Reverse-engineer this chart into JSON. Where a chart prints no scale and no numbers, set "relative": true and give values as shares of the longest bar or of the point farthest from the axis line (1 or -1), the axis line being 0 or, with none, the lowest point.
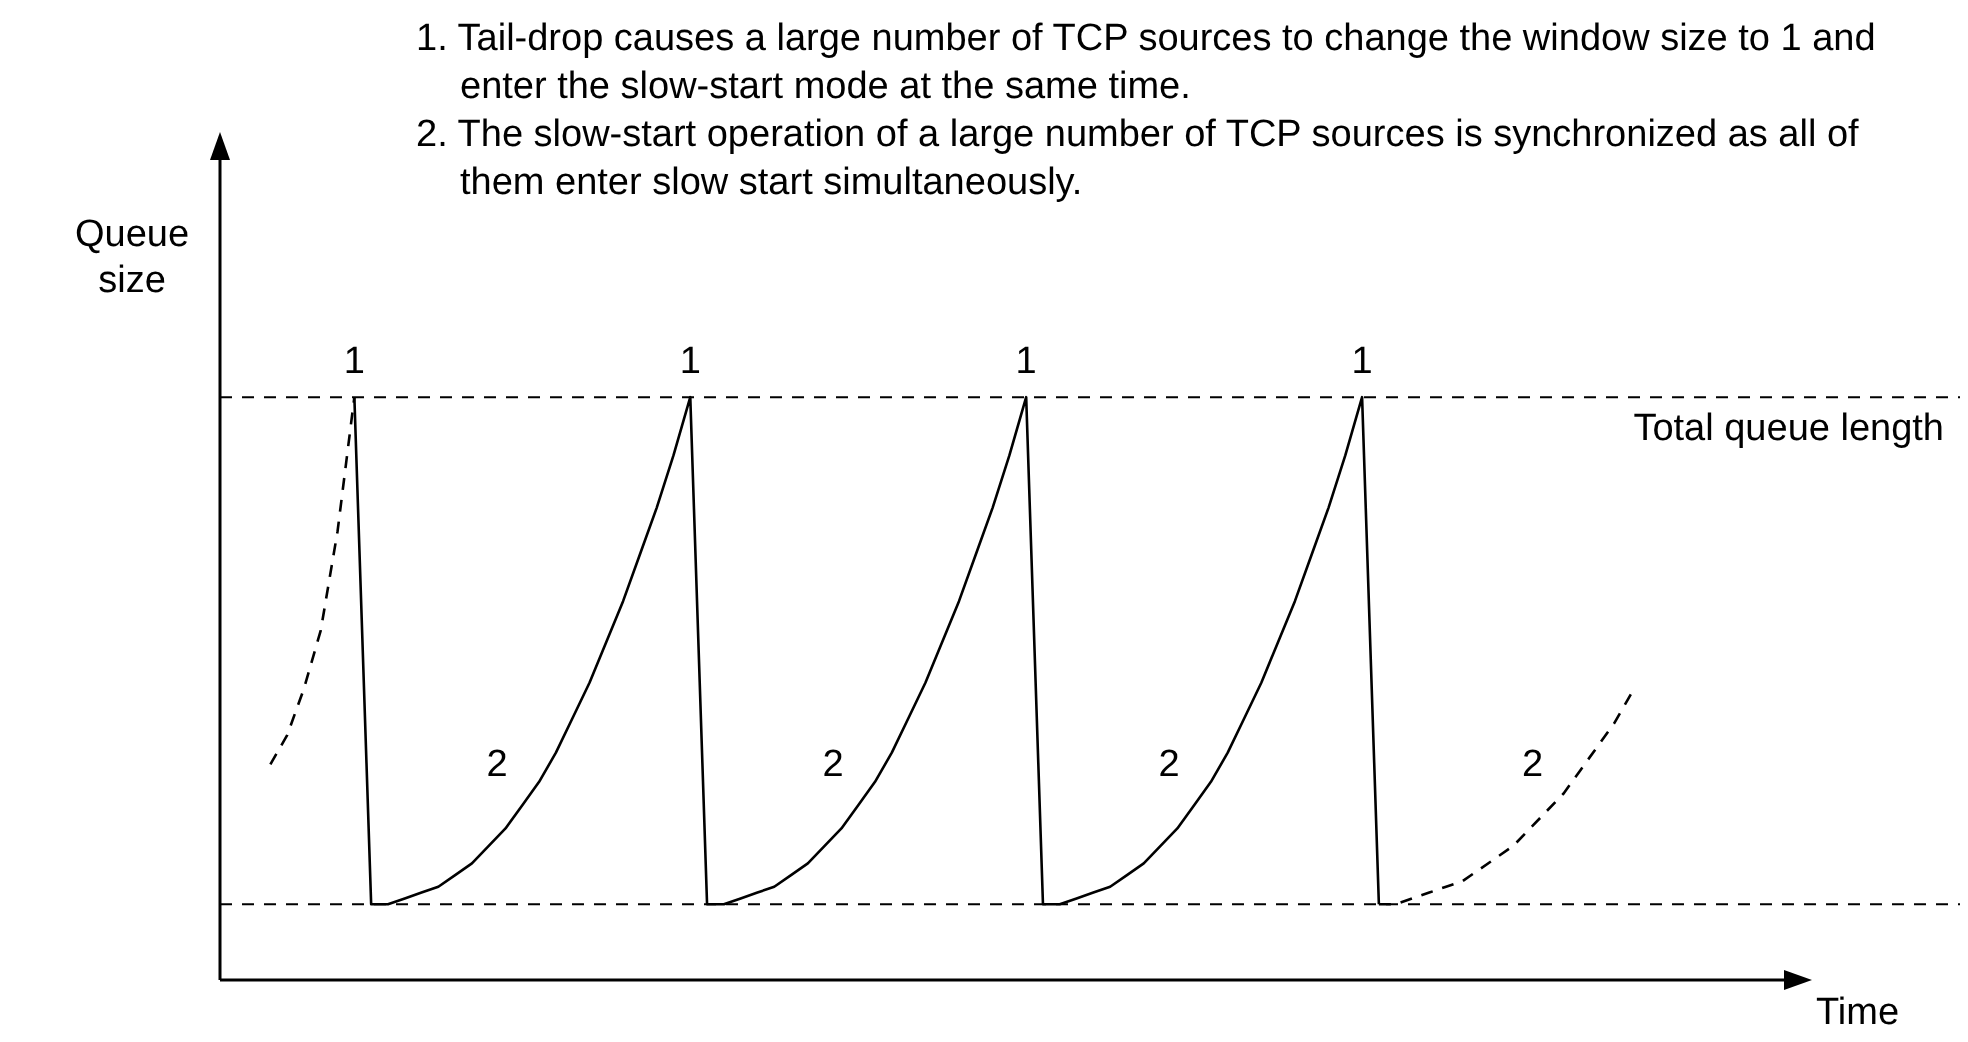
{
  "chart_data": {
    "type": "line",
    "relative": true,
    "marker": "none",
    "ylabel": "Queue size",
    "xlabel": "Time",
    "annotations": [
      "1. Tail-drop causes a large number of TCP sources to change the window size to 1 and enter the slow-start mode at the same time.",
      "2. The slow-start operation of a large number of TCP sources is synchronized as all of them enter slow start simultaneously.",
      {
        "text": "1",
        "y": 1
      },
      {
        "text": "1",
        "y": 1
      },
      {
        "text": "1",
        "y": 1
      },
      {
        "text": "1",
        "y": 1
      },
      "2",
      "2",
      "2",
      "2"
    ],
    "categories": [
      null,
      null,
      null,
      null,
      null,
      null,
      null,
      null,
      null,
      null,
      null,
      null,
      null,
      null,
      null,
      null,
      null,
      null,
      null,
      null,
      null,
      null,
      null,
      null,
      null,
      null,
      null,
      null,
      null,
      null,
      null,
      null,
      null,
      null,
      null,
      null,
      null,
      null,
      null,
      null,
      null,
      null,
      null,
      null,
      null,
      null,
      null,
      null,
      null,
      null,
      null,
      null,
      null,
      null,
      null,
      null,
      null,
      null,
      null,
      null,
      null,
      null,
      null,
      null,
      null,
      null,
      null,
      null,
      null,
      null,
      null,
      null,
      null,
      null,
      null,
      null,
      null,
      null,
      null,
      null,
      null,
      null
    ],
    "ref_lines": [
      {
        "axis": "y",
        "value": 1,
        "label": "Total queue length",
        "line_style": "dashed",
        "color": "#000000"
      },
      {
        "axis": "y",
        "value": 0.13,
        "line_style": "dashed",
        "color": "#000000"
      }
    ],
    "series": [
      {
        "color": "#000000",
        "line_style": "solid",
        "values": [
          null,
          null,
          null,
          null,
          null,
          1,
          0.13,
          0.13,
          0.14,
          0.15,
          0.16,
          0.18,
          0.2,
          0.23,
          0.26,
          0.3,
          0.34,
          0.39,
          0.45,
          0.51,
          0.58,
          0.65,
          0.73,
          0.81,
          0.9,
          1,
          0.13,
          0.13,
          0.14,
          0.15,
          0.16,
          0.18,
          0.2,
          0.23,
          0.26,
          0.3,
          0.34,
          0.39,
          0.45,
          0.51,
          0.58,
          0.65,
          0.73,
          0.81,
          0.9,
          1,
          0.13,
          0.13,
          0.14,
          0.15,
          0.16,
          0.18,
          0.2,
          0.23,
          0.26,
          0.3,
          0.34,
          0.39,
          0.45,
          0.51,
          0.58,
          0.65,
          0.73,
          0.81,
          0.9,
          1,
          0.13,
          null,
          null,
          null,
          null,
          null,
          null,
          null,
          null,
          null,
          null,
          null,
          null,
          null,
          null,
          null
        ]
      },
      {
        "color": "#000000",
        "line_style": "dashed",
        "values": [
          0.37,
          0.42,
          0.5,
          0.6,
          0.77,
          1,
          null,
          null,
          null,
          null,
          null,
          null,
          null,
          null,
          null,
          null,
          null,
          null,
          null,
          null,
          null,
          null,
          null,
          null,
          null,
          null,
          null,
          null,
          null,
          null,
          null,
          null,
          null,
          null,
          null,
          null,
          null,
          null,
          null,
          null,
          null,
          null,
          null,
          null,
          null,
          null,
          null,
          null,
          null,
          null,
          null,
          null,
          null,
          null,
          null,
          null,
          null,
          null,
          null,
          null,
          null,
          null,
          null,
          null,
          null,
          null,
          null,
          null,
          null,
          null,
          null,
          null,
          null,
          null,
          null,
          null,
          null,
          null,
          null,
          null,
          null,
          null
        ]
      },
      {
        "color": "#000000",
        "line_style": "dashed",
        "values": [
          null,
          null,
          null,
          null,
          null,
          null,
          null,
          null,
          null,
          null,
          null,
          null,
          null,
          null,
          null,
          null,
          null,
          null,
          null,
          null,
          null,
          null,
          null,
          null,
          null,
          null,
          null,
          null,
          null,
          null,
          null,
          null,
          null,
          null,
          null,
          null,
          null,
          null,
          null,
          null,
          null,
          null,
          null,
          null,
          null,
          null,
          null,
          null,
          null,
          null,
          null,
          null,
          null,
          null,
          null,
          null,
          null,
          null,
          null,
          null,
          null,
          null,
          null,
          null,
          null,
          null,
          0.13,
          0.13,
          0.14,
          0.15,
          0.16,
          0.17,
          0.19,
          0.21,
          0.23,
          0.26,
          0.29,
          0.32,
          0.36,
          0.4,
          0.44,
          0.49
        ]
      }
    ]
  }
}
